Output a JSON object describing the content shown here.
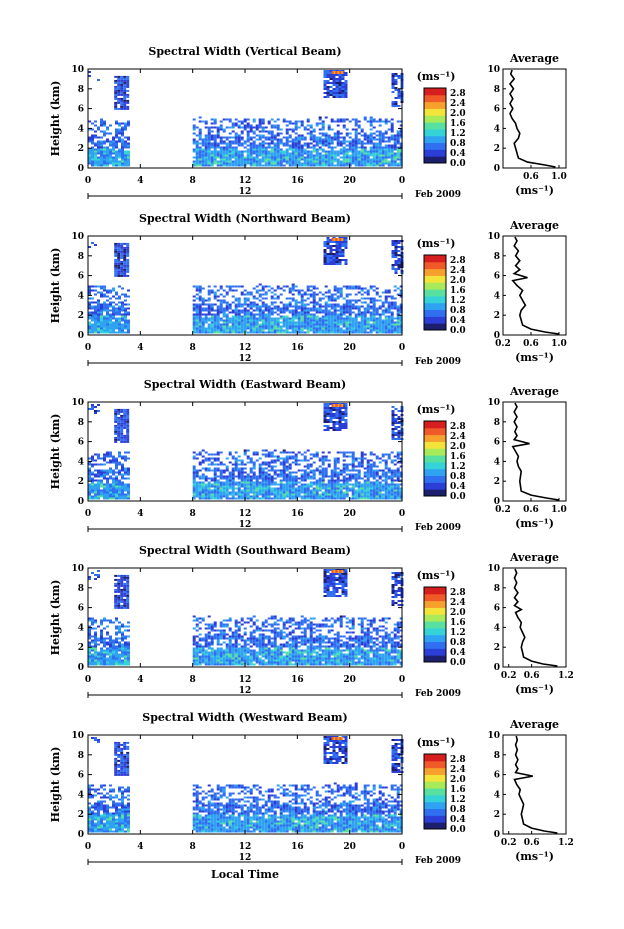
{
  "chart_data": {
    "type": "heatmap",
    "colorbar": {
      "unit": "(ms⁻¹)",
      "ticks": [
        "2.8",
        "2.4",
        "2.0",
        "1.6",
        "1.2",
        "0.8",
        "0.4",
        "0.0"
      ],
      "range": [
        0.0,
        3.0
      ],
      "colors": [
        "#1b1f6e",
        "#2b3fd6",
        "#2f6ff0",
        "#2fa3f2",
        "#35d2d8",
        "#58e0a0",
        "#a8ea5a",
        "#f2e43a",
        "#f6a12d",
        "#f05a28",
        "#d71e1e"
      ]
    },
    "x_ticks": [
      "0",
      "4",
      "8",
      "12",
      "16",
      "20",
      "0"
    ],
    "x_range": [
      0,
      24
    ],
    "date_marker": "12",
    "date_label": "Feb 2009",
    "y_ticks": [
      "0",
      "2",
      "4",
      "6",
      "8",
      "10"
    ],
    "y_range": [
      0,
      10
    ],
    "y_label": "Height (km)",
    "x_label": "Local Time",
    "profile_title": "Average",
    "profile_xlabel": "(ms⁻¹)",
    "panels": [
      {
        "title": "Spectral Width (Vertical Beam)",
        "profile_xticks": [
          "0.6",
          "1.0"
        ],
        "profile_xrange": [
          0.2,
          1.1
        ],
        "profile": [
          [
            0.95,
            0.1
          ],
          [
            0.8,
            0.3
          ],
          [
            0.55,
            0.6
          ],
          [
            0.42,
            1.0
          ],
          [
            0.4,
            1.5
          ],
          [
            0.38,
            2.0
          ],
          [
            0.36,
            2.5
          ],
          [
            0.42,
            3.0
          ],
          [
            0.44,
            3.5
          ],
          [
            0.4,
            4.0
          ],
          [
            0.38,
            4.5
          ],
          [
            0.33,
            5.0
          ],
          [
            0.3,
            5.5
          ],
          [
            0.34,
            6.0
          ],
          [
            0.3,
            6.5
          ],
          [
            0.34,
            7.0
          ],
          [
            0.3,
            7.5
          ],
          [
            0.35,
            8.0
          ],
          [
            0.3,
            8.5
          ],
          [
            0.36,
            9.0
          ],
          [
            0.31,
            9.5
          ],
          [
            0.33,
            9.9
          ]
        ]
      },
      {
        "title": "Spectral Width (Northward Beam)",
        "profile_xticks": [
          "0.2",
          "0.6",
          "1.0"
        ],
        "profile_xrange": [
          0.2,
          1.1
        ],
        "profile": [
          [
            1.0,
            0.1
          ],
          [
            0.8,
            0.3
          ],
          [
            0.6,
            0.6
          ],
          [
            0.48,
            1.0
          ],
          [
            0.46,
            1.5
          ],
          [
            0.44,
            2.0
          ],
          [
            0.46,
            2.5
          ],
          [
            0.52,
            3.0
          ],
          [
            0.48,
            3.5
          ],
          [
            0.44,
            4.0
          ],
          [
            0.48,
            4.5
          ],
          [
            0.4,
            5.0
          ],
          [
            0.34,
            5.5
          ],
          [
            0.55,
            5.8
          ],
          [
            0.36,
            6.2
          ],
          [
            0.44,
            6.6
          ],
          [
            0.38,
            7.0
          ],
          [
            0.44,
            7.5
          ],
          [
            0.38,
            8.0
          ],
          [
            0.42,
            8.5
          ],
          [
            0.36,
            9.0
          ],
          [
            0.4,
            9.5
          ],
          [
            0.37,
            9.9
          ]
        ]
      },
      {
        "title": "Spectral Width (Eastward Beam)",
        "profile_xticks": [
          "0.2",
          "0.6",
          "1.0"
        ],
        "profile_xrange": [
          0.2,
          1.1
        ],
        "profile": [
          [
            1.0,
            0.1
          ],
          [
            0.82,
            0.3
          ],
          [
            0.6,
            0.6
          ],
          [
            0.46,
            1.0
          ],
          [
            0.45,
            1.5
          ],
          [
            0.44,
            2.0
          ],
          [
            0.45,
            2.5
          ],
          [
            0.46,
            3.0
          ],
          [
            0.42,
            3.5
          ],
          [
            0.4,
            4.0
          ],
          [
            0.42,
            4.5
          ],
          [
            0.38,
            5.0
          ],
          [
            0.34,
            5.5
          ],
          [
            0.58,
            5.8
          ],
          [
            0.36,
            6.2
          ],
          [
            0.4,
            6.6
          ],
          [
            0.37,
            7.0
          ],
          [
            0.4,
            7.5
          ],
          [
            0.36,
            8.0
          ],
          [
            0.4,
            8.5
          ],
          [
            0.36,
            9.0
          ],
          [
            0.4,
            9.5
          ],
          [
            0.37,
            9.9
          ]
        ]
      },
      {
        "title": "Spectral Width (Southward Beam)",
        "profile_xticks": [
          "0.2",
          "0.6",
          "1.2"
        ],
        "profile_xrange": [
          0.1,
          1.2
        ],
        "profile": [
          [
            1.05,
            0.1
          ],
          [
            0.8,
            0.3
          ],
          [
            0.6,
            0.6
          ],
          [
            0.46,
            1.0
          ],
          [
            0.44,
            1.5
          ],
          [
            0.42,
            2.0
          ],
          [
            0.44,
            2.5
          ],
          [
            0.48,
            3.0
          ],
          [
            0.44,
            3.5
          ],
          [
            0.4,
            4.0
          ],
          [
            0.42,
            4.5
          ],
          [
            0.36,
            5.0
          ],
          [
            0.32,
            5.5
          ],
          [
            0.42,
            5.8
          ],
          [
            0.3,
            6.2
          ],
          [
            0.36,
            6.6
          ],
          [
            0.3,
            7.0
          ],
          [
            0.36,
            7.5
          ],
          [
            0.3,
            8.0
          ],
          [
            0.34,
            8.5
          ],
          [
            0.3,
            9.0
          ],
          [
            0.34,
            9.5
          ],
          [
            0.31,
            9.9
          ]
        ]
      },
      {
        "title": "Spectral Width (Westward Beam)",
        "profile_xticks": [
          "0.2",
          "0.6",
          "1.2"
        ],
        "profile_xrange": [
          0.1,
          1.2
        ],
        "profile": [
          [
            1.05,
            0.1
          ],
          [
            0.82,
            0.3
          ],
          [
            0.6,
            0.6
          ],
          [
            0.46,
            1.0
          ],
          [
            0.44,
            1.5
          ],
          [
            0.42,
            2.0
          ],
          [
            0.44,
            2.5
          ],
          [
            0.46,
            3.0
          ],
          [
            0.42,
            3.5
          ],
          [
            0.38,
            4.0
          ],
          [
            0.4,
            4.5
          ],
          [
            0.34,
            5.0
          ],
          [
            0.3,
            5.5
          ],
          [
            0.62,
            5.85
          ],
          [
            0.32,
            6.2
          ],
          [
            0.36,
            6.6
          ],
          [
            0.32,
            7.0
          ],
          [
            0.36,
            7.5
          ],
          [
            0.32,
            8.0
          ],
          [
            0.35,
            8.5
          ],
          [
            0.32,
            9.0
          ],
          [
            0.35,
            9.5
          ],
          [
            0.33,
            9.9
          ]
        ]
      }
    ]
  }
}
